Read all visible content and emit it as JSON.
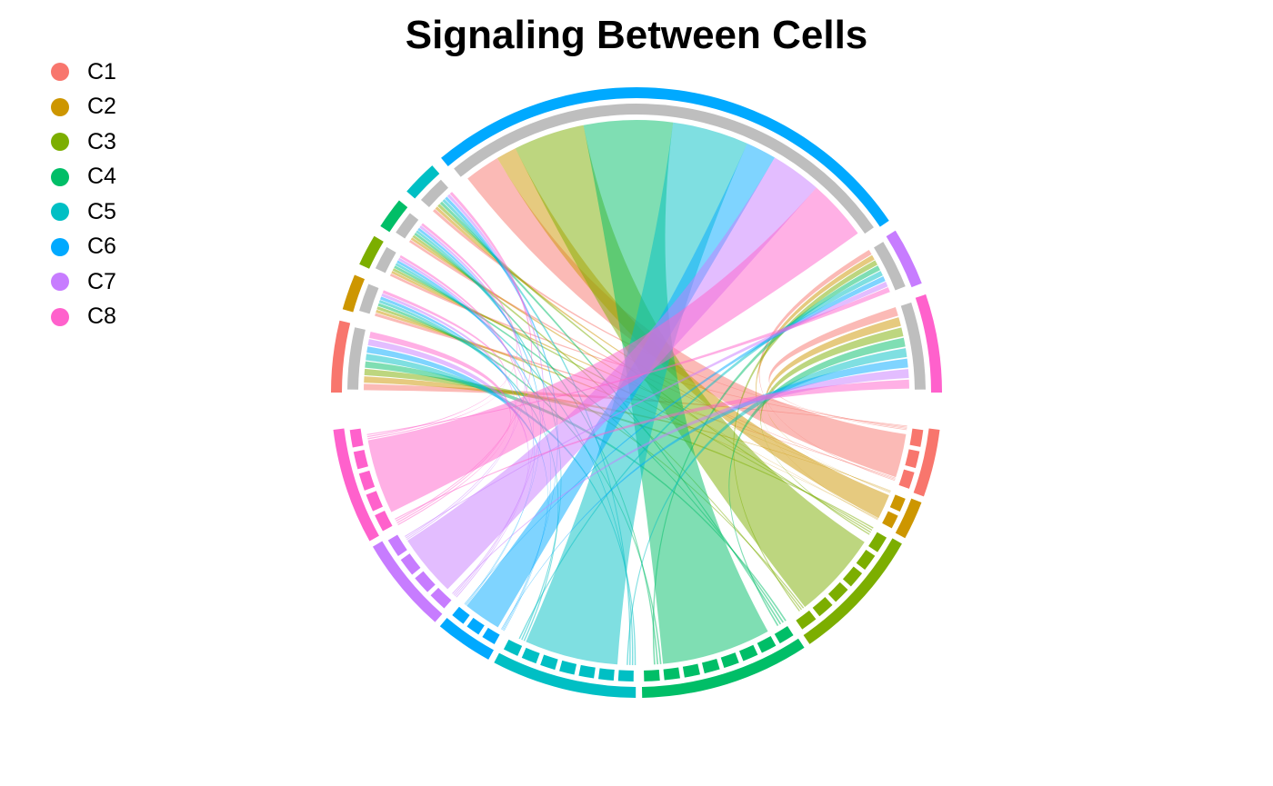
{
  "title": "Signaling Between Cells",
  "legend": [
    {
      "label": "C1",
      "color": "#F8766D"
    },
    {
      "label": "C2",
      "color": "#CD9600"
    },
    {
      "label": "C3",
      "color": "#7CAE00"
    },
    {
      "label": "C4",
      "color": "#00BE67"
    },
    {
      "label": "C5",
      "color": "#00BFC4"
    },
    {
      "label": "C6",
      "color": "#00A9FF"
    },
    {
      "label": "C7",
      "color": "#C77CFF"
    },
    {
      "label": "C8",
      "color": "#FF61CC"
    }
  ],
  "colors": {
    "receiver_track": "#BEBEBE"
  },
  "diagram": {
    "type": "chord",
    "sectors": [
      {
        "group": "C1",
        "role": "receiver",
        "width": 16
      },
      {
        "group": "C2",
        "role": "receiver",
        "width": 8
      },
      {
        "group": "C3",
        "role": "receiver",
        "width": 7
      },
      {
        "group": "C4",
        "role": "receiver",
        "width": 7
      },
      {
        "group": "C5",
        "role": "receiver",
        "width": 8
      },
      {
        "group": "C6",
        "role": "receiver",
        "width": 112
      },
      {
        "group": "C7",
        "role": "receiver",
        "width": 13
      },
      {
        "group": "C8",
        "role": "receiver",
        "width": 22
      },
      {
        "group": "C1",
        "role": "sender",
        "width": 14
      },
      {
        "group": "C2",
        "role": "sender",
        "width": 8
      },
      {
        "group": "C3",
        "role": "sender",
        "width": 28
      },
      {
        "group": "C4",
        "role": "sender",
        "width": 35
      },
      {
        "group": "C5",
        "role": "sender",
        "width": 30
      },
      {
        "group": "C6",
        "role": "sender",
        "width": 12
      },
      {
        "group": "C7",
        "role": "sender",
        "width": 20
      },
      {
        "group": "C8",
        "role": "sender",
        "width": 24
      }
    ]
  }
}
